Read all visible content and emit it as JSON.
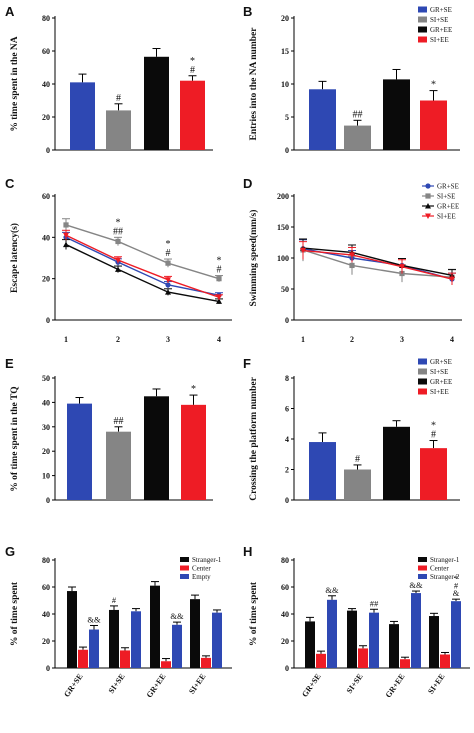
{
  "colors": {
    "GR+SE": "#2e48b3",
    "SI+SE": "#858585",
    "GR+EE": "#0a0a0a",
    "SI+EE": "#ee1c25",
    "Stranger-1": "#0a0a0a",
    "Center": "#ee1c25",
    "Empty": "#2e48b3",
    "Stranger-2": "#2e48b3"
  },
  "chart_data": [
    {
      "panel": "A",
      "type": "bar",
      "ylabel": "% time spent  in the NA",
      "categories": [
        "GR+SE",
        "SI+SE",
        "GR+EE",
        "SI+EE"
      ],
      "values": [
        41,
        24,
        56.5,
        42
      ],
      "errors": [
        5,
        4,
        5,
        3
      ],
      "annotations": [
        "",
        "#",
        "",
        "*\n#"
      ],
      "ylim": [
        0,
        80
      ],
      "yticks": [
        0,
        20,
        40,
        60,
        80
      ],
      "legend": "none"
    },
    {
      "panel": "B",
      "type": "bar",
      "ylabel": "Entries into the NA number",
      "categories": [
        "GR+SE",
        "SI+SE",
        "GR+EE",
        "SI+EE"
      ],
      "values": [
        9.2,
        3.7,
        10.7,
        7.5
      ],
      "errors": [
        1.2,
        0.8,
        1.5,
        1.5
      ],
      "annotations": [
        "",
        "##",
        "",
        "*"
      ],
      "ylim": [
        0,
        20
      ],
      "yticks": [
        0,
        5,
        10,
        15,
        20
      ],
      "legend": "top-right"
    },
    {
      "panel": "C",
      "type": "line",
      "ylabel": "Escape latency(s)",
      "x": [
        1,
        2,
        3,
        4
      ],
      "series": [
        {
          "name": "GR+SE",
          "values": [
            40,
            28,
            17,
            12
          ]
        },
        {
          "name": "SI+SE",
          "values": [
            46,
            38,
            27.5,
            20
          ]
        },
        {
          "name": "GR+EE",
          "values": [
            36.5,
            24.5,
            13.5,
            9
          ]
        },
        {
          "name": "SI+EE",
          "values": [
            41,
            29,
            19.5,
            11
          ]
        }
      ],
      "errors": [
        3,
        2,
        2,
        1.5
      ],
      "annotations": [
        "",
        "*\n##",
        "*\n#",
        "*\n#"
      ],
      "ylim": [
        0,
        60
      ],
      "yticks": [
        0,
        20,
        40,
        60
      ],
      "legend": "none"
    },
    {
      "panel": "D",
      "type": "line",
      "ylabel": "Swimming speed(mm/s)",
      "x": [
        1,
        2,
        3,
        4
      ],
      "series": [
        {
          "name": "GR+SE",
          "values": [
            115,
            100,
            88,
            66
          ]
        },
        {
          "name": "SI+SE",
          "values": [
            113,
            88,
            75,
            69
          ]
        },
        {
          "name": "GR+EE",
          "values": [
            116,
            109,
            88,
            72
          ]
        },
        {
          "name": "SI+EE",
          "values": [
            112,
            105,
            86,
            66
          ]
        }
      ],
      "errors": [
        18,
        15,
        14,
        12
      ],
      "ylim": [
        0,
        200
      ],
      "yticks": [
        0,
        50,
        100,
        150,
        200
      ],
      "legend": "top-right"
    },
    {
      "panel": "E",
      "type": "bar",
      "ylabel": "% of time spent in the TQ",
      "categories": [
        "GR+SE",
        "SI+SE",
        "GR+EE",
        "SI+EE"
      ],
      "values": [
        39.5,
        28,
        42.5,
        39
      ],
      "errors": [
        2.5,
        2,
        3,
        4
      ],
      "annotations": [
        "",
        "##",
        "",
        "*"
      ],
      "ylim": [
        0,
        50
      ],
      "yticks": [
        0,
        10,
        20,
        30,
        40,
        50
      ],
      "legend": "none"
    },
    {
      "panel": "F",
      "type": "bar",
      "ylabel": "Crossing the platform number",
      "categories": [
        "GR+SE",
        "SI+SE",
        "GR+EE",
        "SI+EE"
      ],
      "values": [
        3.8,
        2.0,
        4.8,
        3.4
      ],
      "errors": [
        0.6,
        0.3,
        0.4,
        0.5
      ],
      "annotations": [
        "",
        "#",
        "",
        "*\n#"
      ],
      "ylim": [
        0,
        8
      ],
      "yticks": [
        0,
        2,
        4,
        6,
        8
      ],
      "legend": "top-right"
    },
    {
      "panel": "G",
      "type": "bar",
      "ylabel": "% of time spent",
      "categories": [
        "GR+SE",
        "SI+SE",
        "GR+EE",
        "SI+EE"
      ],
      "series": [
        {
          "name": "Stranger-1",
          "values": [
            57,
            43,
            61,
            51
          ],
          "errors": [
            3,
            3,
            3,
            3
          ],
          "annotations": [
            "",
            "#",
            "",
            ""
          ]
        },
        {
          "name": "Center",
          "values": [
            13.5,
            13,
            5,
            7.5
          ],
          "errors": [
            2,
            2,
            2,
            1.5
          ],
          "annotations": [
            "",
            "",
            "",
            ""
          ]
        },
        {
          "name": "Empty",
          "values": [
            28.5,
            42,
            32,
            41
          ],
          "errors": [
            3,
            2,
            2,
            2
          ],
          "annotations": [
            "&&",
            "",
            "&&",
            ""
          ]
        }
      ],
      "ylim": [
        0,
        80
      ],
      "yticks": [
        0,
        20,
        40,
        60,
        80
      ],
      "legend": "top-right"
    },
    {
      "panel": "H",
      "type": "bar",
      "ylabel": "% of time spent",
      "categories": [
        "GR+SE",
        "SI+SE",
        "GR+EE",
        "SI+EE"
      ],
      "series": [
        {
          "name": "Stranger-1",
          "values": [
            34.5,
            42.5,
            32.5,
            38.5
          ],
          "errors": [
            3,
            1.5,
            2,
            2
          ],
          "annotations": [
            "",
            "",
            "",
            ""
          ]
        },
        {
          "name": "Center",
          "values": [
            10.5,
            14.5,
            6.5,
            10
          ],
          "errors": [
            2,
            2,
            1.5,
            1.5
          ],
          "annotations": [
            "",
            "",
            "",
            ""
          ]
        },
        {
          "name": "Stranger-2",
          "values": [
            50.5,
            41,
            55.5,
            49.5
          ],
          "errors": [
            3,
            2.5,
            1.5,
            1.5
          ],
          "annotations": [
            "&&",
            "##",
            "&&",
            "*\n#\n&"
          ]
        }
      ],
      "ylim": [
        0,
        80
      ],
      "yticks": [
        0,
        20,
        40,
        60,
        80
      ],
      "legend": "top-right"
    }
  ]
}
